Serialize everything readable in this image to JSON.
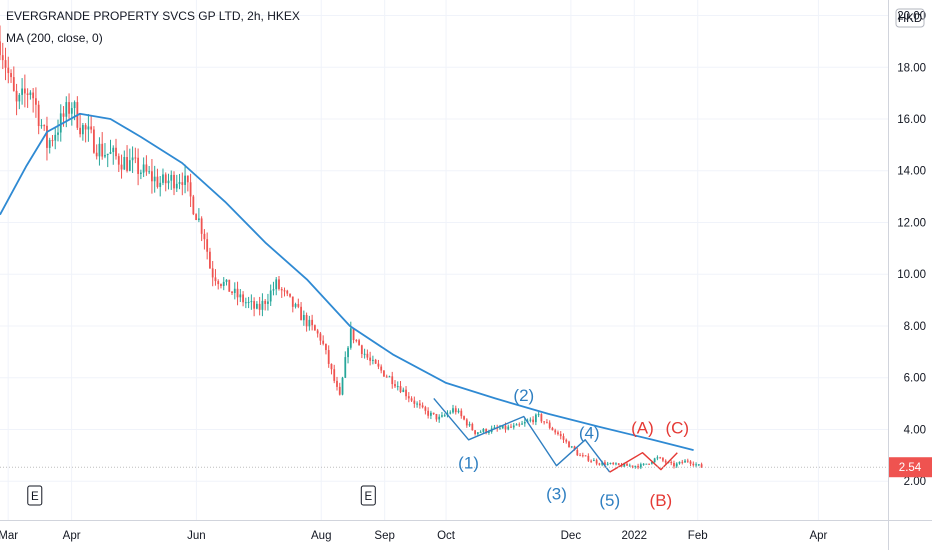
{
  "header": {
    "title": "EVERGRANDE PROPERTY SVCS GP LTD, 2h, HKEX",
    "indicator": "MA (200, close, 0)",
    "currency": "HKD"
  },
  "colors": {
    "up": "#26a69a",
    "down": "#ef5350",
    "ma": "#2f8ad3",
    "wave_blue": "#2f7fc1",
    "wave_red": "#e53935",
    "price_label_bg": "#ef5350"
  },
  "chart_data": {
    "type": "line",
    "title": "EVERGRANDE PROPERTY SVCS GP LTD, 2h, HKEX",
    "xlabel": "",
    "ylabel": "",
    "x_ticks": [
      "Mar",
      "Apr",
      "Jun",
      "Aug",
      "Sep",
      "Oct",
      "Dec",
      "2022",
      "Feb",
      "Apr"
    ],
    "y_ticks": [
      "2.00",
      "4.00",
      "6.00",
      "8.00",
      "10.00",
      "12.00",
      "14.00",
      "16.00",
      "18.00",
      "20.00"
    ],
    "ylim": [
      0.5,
      20.6
    ],
    "x_range": [
      "2021-02-25",
      "2022-05-05"
    ],
    "grid": true,
    "current_price": {
      "label": "2.54",
      "value": 2.54
    },
    "series": [
      {
        "name": "MA (200, close, 0)",
        "points": [
          [
            "2021-02-25",
            12.3
          ],
          [
            "2021-03-10",
            14.2
          ],
          [
            "2021-03-20",
            15.5
          ],
          [
            "2021-04-05",
            16.2
          ],
          [
            "2021-04-20",
            16.0
          ],
          [
            "2021-05-05",
            15.3
          ],
          [
            "2021-05-25",
            14.3
          ],
          [
            "2021-06-15",
            12.8
          ],
          [
            "2021-07-05",
            11.2
          ],
          [
            "2021-07-25",
            9.8
          ],
          [
            "2021-08-15",
            8.0
          ],
          [
            "2021-09-05",
            6.9
          ],
          [
            "2021-10-01",
            5.8
          ],
          [
            "2021-10-25",
            5.2
          ],
          [
            "2021-11-20",
            4.6
          ],
          [
            "2021-12-15",
            4.1
          ],
          [
            "2022-01-10",
            3.6
          ],
          [
            "2022-01-30",
            3.2
          ]
        ]
      },
      {
        "name": "Price",
        "points": [
          [
            "2021-02-25",
            19.0
          ],
          [
            "2021-03-05",
            16.5
          ],
          [
            "2021-03-12",
            17.2
          ],
          [
            "2021-03-20",
            15.0
          ],
          [
            "2021-04-01",
            16.6
          ],
          [
            "2021-04-05",
            15.8
          ],
          [
            "2021-04-15",
            14.8
          ],
          [
            "2021-05-01",
            14.2
          ],
          [
            "2021-05-15",
            13.5
          ],
          [
            "2021-05-25",
            13.8
          ],
          [
            "2021-06-05",
            11.5
          ],
          [
            "2021-06-08",
            10.1
          ],
          [
            "2021-06-20",
            9.2
          ],
          [
            "2021-07-01",
            8.6
          ],
          [
            "2021-07-10",
            9.6
          ],
          [
            "2021-07-20",
            8.6
          ],
          [
            "2021-08-01",
            7.5
          ],
          [
            "2021-08-10",
            5.2
          ],
          [
            "2021-08-15",
            7.8
          ],
          [
            "2021-08-25",
            6.6
          ],
          [
            "2021-09-05",
            5.9
          ],
          [
            "2021-09-20",
            4.7
          ],
          [
            "2021-09-28",
            4.4
          ],
          [
            "2021-10-05",
            4.8
          ],
          [
            "2021-10-15",
            3.9
          ],
          [
            "2021-10-25",
            4.0
          ],
          [
            "2021-11-05",
            4.1
          ],
          [
            "2021-11-15",
            4.5
          ],
          [
            "2021-11-25",
            3.8
          ],
          [
            "2021-12-05",
            3.0
          ],
          [
            "2021-12-15",
            2.7
          ],
          [
            "2021-12-25",
            2.6
          ],
          [
            "2022-01-05",
            2.6
          ],
          [
            "2022-01-12",
            2.9
          ],
          [
            "2022-01-20",
            2.6
          ],
          [
            "2022-01-27",
            2.8
          ],
          [
            "2022-02-03",
            2.54
          ]
        ]
      },
      {
        "name": "Wave path blue",
        "points": [
          [
            "2021-09-25",
            5.2
          ],
          [
            "2021-10-12",
            3.6
          ],
          [
            "2021-11-08",
            4.5
          ],
          [
            "2021-11-24",
            2.6
          ],
          [
            "2021-12-08",
            3.6
          ],
          [
            "2021-12-20",
            2.35
          ]
        ]
      },
      {
        "name": "Wave path red",
        "points": [
          [
            "2021-12-20",
            2.35
          ],
          [
            "2022-01-05",
            3.1
          ],
          [
            "2022-01-14",
            2.45
          ],
          [
            "2022-01-22",
            3.1
          ]
        ]
      }
    ],
    "annotations": [
      {
        "text": "(1)",
        "x": "2021-10-12",
        "y": 2.5,
        "color": "wave_blue"
      },
      {
        "text": "(2)",
        "x": "2021-11-08",
        "y": 5.1,
        "color": "wave_blue"
      },
      {
        "text": "(3)",
        "x": "2021-11-24",
        "y": 1.3,
        "color": "wave_blue"
      },
      {
        "text": "(4)",
        "x": "2021-12-10",
        "y": 3.65,
        "color": "wave_blue"
      },
      {
        "text": "(5)",
        "x": "2021-12-20",
        "y": 1.05,
        "color": "wave_blue"
      },
      {
        "text": "(A)",
        "x": "2022-01-05",
        "y": 3.85,
        "color": "wave_red"
      },
      {
        "text": "(B)",
        "x": "2022-01-14",
        "y": 1.05,
        "color": "wave_red"
      },
      {
        "text": "(C)",
        "x": "2022-01-22",
        "y": 3.85,
        "color": "wave_red"
      }
    ],
    "events": [
      {
        "label": "E",
        "x": "2021-03-14"
      },
      {
        "label": "E",
        "x": "2021-08-24"
      }
    ]
  }
}
